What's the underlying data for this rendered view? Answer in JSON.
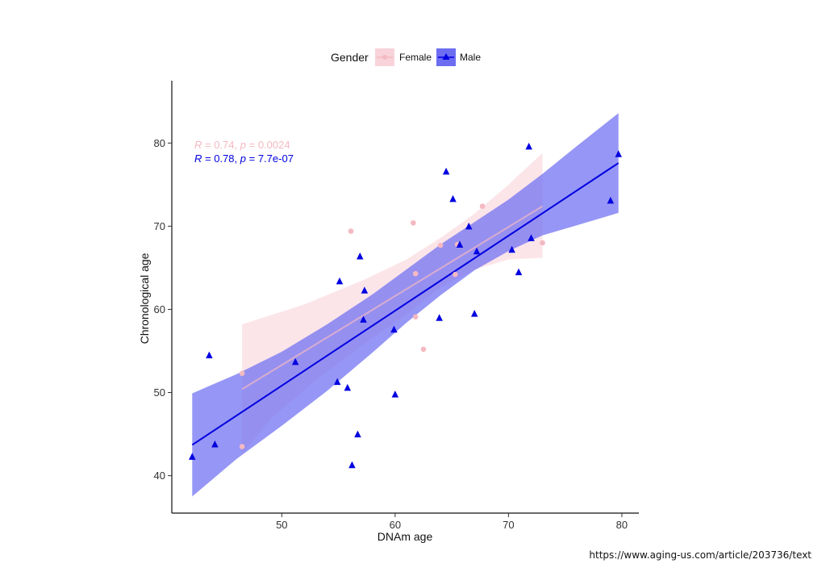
{
  "chart_data": {
    "type": "scatter",
    "xlabel": "DNAm age",
    "ylabel": "Chronological age",
    "xlim": [
      40.3,
      81.5
    ],
    "ylim": [
      35.5,
      87.5
    ],
    "xticks": [
      50,
      60,
      70,
      80
    ],
    "yticks": [
      40,
      50,
      60,
      70,
      80
    ],
    "grid": false,
    "legend": {
      "title": "Gender",
      "position": "top",
      "entries": [
        "Female",
        "Male"
      ]
    },
    "series": [
      {
        "name": "Female",
        "marker": "circle",
        "color": "#f4b9c2",
        "band_color": "#f8d3da",
        "points": [
          [
            46.5,
            52.3
          ],
          [
            46.5,
            43.5
          ],
          [
            56.1,
            69.4
          ],
          [
            61.6,
            70.4
          ],
          [
            61.8,
            64.3
          ],
          [
            61.8,
            59.1
          ],
          [
            62.5,
            55.2
          ],
          [
            64.0,
            67.7
          ],
          [
            65.3,
            64.2
          ],
          [
            65.5,
            67.8
          ],
          [
            67.7,
            72.4
          ],
          [
            73.0,
            68.0
          ]
        ],
        "fit": {
          "x": [
            46.5,
            73.0
          ],
          "y": [
            50.4,
            72.4
          ]
        },
        "ci_upper": [
          [
            46.5,
            58.2
          ],
          [
            52.0,
            60.6
          ],
          [
            57.0,
            63.4
          ],
          [
            61.0,
            66.0
          ],
          [
            64.0,
            68.6
          ],
          [
            67.0,
            71.5
          ],
          [
            70.0,
            75.0
          ],
          [
            73.0,
            78.8
          ]
        ],
        "ci_lower": [
          [
            46.5,
            42.6
          ],
          [
            49.0,
            46.8
          ],
          [
            53.0,
            51.5
          ],
          [
            57.0,
            55.6
          ],
          [
            61.0,
            59.4
          ],
          [
            64.0,
            62.6
          ],
          [
            67.0,
            64.8
          ],
          [
            70.0,
            66.0
          ],
          [
            73.0,
            66.2
          ]
        ],
        "stat": {
          "r": "0.74",
          "p": "0.0024"
        }
      },
      {
        "name": "Male",
        "marker": "triangle",
        "color": "#0000e0",
        "band_color": "#6d6df2",
        "points": [
          [
            42.1,
            42.3
          ],
          [
            43.6,
            54.5
          ],
          [
            44.1,
            43.8
          ],
          [
            51.2,
            53.7
          ],
          [
            54.9,
            51.3
          ],
          [
            55.1,
            63.4
          ],
          [
            55.8,
            50.6
          ],
          [
            56.2,
            41.3
          ],
          [
            56.7,
            45.0
          ],
          [
            56.9,
            66.4
          ],
          [
            57.2,
            58.8
          ],
          [
            57.3,
            62.3
          ],
          [
            59.9,
            57.6
          ],
          [
            60.0,
            49.8
          ],
          [
            63.9,
            59.0
          ],
          [
            64.5,
            76.6
          ],
          [
            65.1,
            73.3
          ],
          [
            65.7,
            67.8
          ],
          [
            66.5,
            70.0
          ],
          [
            67.0,
            59.5
          ],
          [
            67.2,
            67.0
          ],
          [
            70.3,
            67.2
          ],
          [
            70.9,
            64.5
          ],
          [
            71.8,
            79.6
          ],
          [
            72.0,
            68.6
          ],
          [
            79.0,
            73.1
          ],
          [
            79.7,
            78.7
          ]
        ],
        "fit": {
          "x": [
            42.1,
            79.7
          ],
          "y": [
            43.7,
            77.6
          ]
        },
        "ci_upper": [
          [
            42.1,
            49.9
          ],
          [
            46.0,
            52.2
          ],
          [
            50.0,
            54.9
          ],
          [
            54.0,
            58.2
          ],
          [
            58.0,
            61.8
          ],
          [
            61.0,
            64.8
          ],
          [
            64.0,
            67.8
          ],
          [
            67.0,
            70.5
          ],
          [
            70.0,
            73.2
          ],
          [
            73.0,
            76.3
          ],
          [
            76.0,
            79.6
          ],
          [
            79.7,
            83.6
          ]
        ],
        "ci_lower": [
          [
            42.1,
            37.5
          ],
          [
            46.0,
            42.0
          ],
          [
            50.0,
            46.0
          ],
          [
            54.0,
            50.2
          ],
          [
            58.0,
            54.8
          ],
          [
            61.0,
            58.4
          ],
          [
            64.0,
            61.7
          ],
          [
            67.0,
            64.7
          ],
          [
            70.0,
            67.0
          ],
          [
            73.0,
            68.9
          ],
          [
            76.0,
            70.1
          ],
          [
            79.7,
            71.6
          ]
        ],
        "stat": {
          "r": "0.78",
          "p": "7.7e-07"
        }
      }
    ]
  },
  "source_url": "https://www.aging-us.com/article/203736/text"
}
